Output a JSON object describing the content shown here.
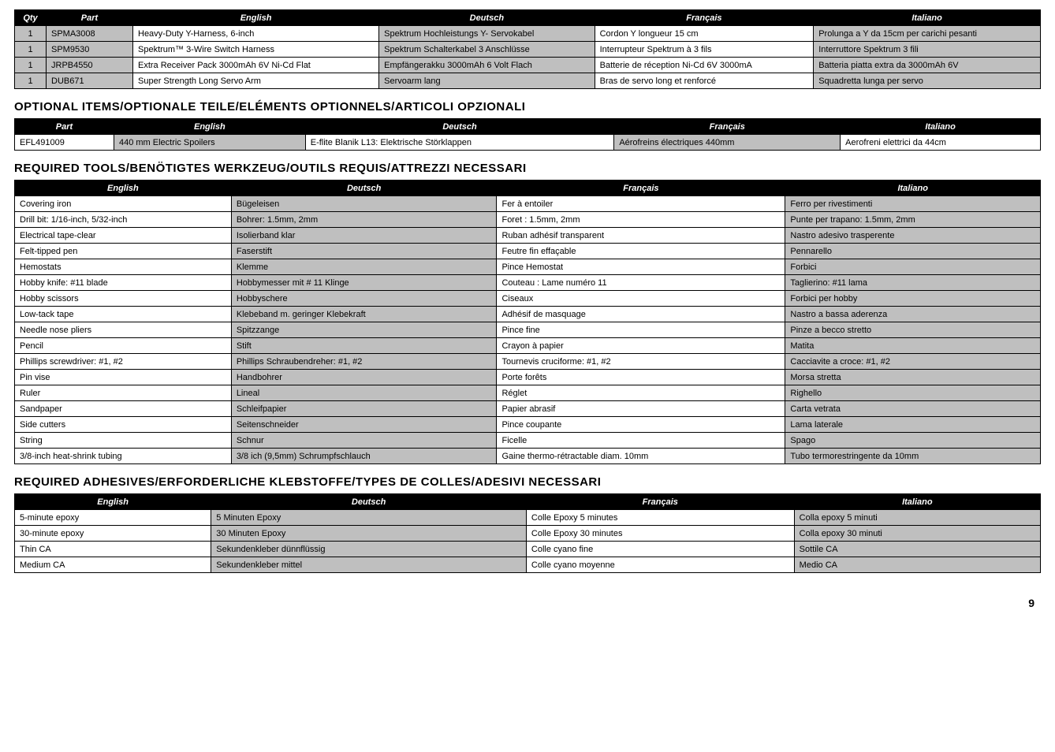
{
  "table1": {
    "headers": [
      "Qty",
      "Part",
      "English",
      "Deutsch",
      "Français",
      "Italiano"
    ],
    "rows": [
      [
        "1",
        "SPMA3008",
        "Heavy-Duty Y-Harness, 6-inch",
        "Spektrum Hochleistungs Y- Servokabel",
        "Cordon Y longueur 15 cm",
        "Prolunga a Y da 15cm per carichi pesanti"
      ],
      [
        "1",
        "SPM9530",
        "Spektrum™ 3-Wire Switch Harness",
        "Spektrum Schalterkabel 3 Anschlüsse",
        "Interrupteur Spektrum à 3 fils",
        "Interruttore Spektrum 3 fili"
      ],
      [
        "1",
        "JRPB4550",
        "Extra Receiver Pack 3000mAh 6V Ni-Cd Flat",
        "Empfängerakku 3000mAh 6 Volt Flach",
        "Batterie de réception Ni-Cd 6V 3000mA",
        "Batteria piatta extra da 3000mAh 6V"
      ],
      [
        "1",
        "DUB671",
        "Super Strength Long Servo Arm",
        "Servoarm lang",
        "Bras de servo long et renforcé",
        "Squadretta lunga per servo"
      ]
    ]
  },
  "heading2": "OPTIONAL ITEMS/OPTIONALE TEILE/ELÉMENTS OPTIONNELS/ARTICOLI OPZIONALI",
  "table2": {
    "headers": [
      "Part",
      "English",
      "Deutsch",
      "Français",
      "Italiano"
    ],
    "rows": [
      [
        "EFL491009",
        "440 mm Electric Spoilers",
        "E-flite Blanik L13: Elektrische Störklappen",
        "Aérofreins électriques 440mm",
        "Aerofreni elettrici da 44cm"
      ]
    ]
  },
  "heading3": "REQUIRED TOOLS/BENÖTIGTES WERKZEUG/OUTILS REQUIS/ATTREZZI NECESSARI",
  "table3": {
    "headers": [
      "English",
      "Deutsch",
      "Français",
      "Italiano"
    ],
    "rows": [
      [
        "Covering iron",
        "Bügeleisen",
        "Fer à entoiler",
        "Ferro per rivestimenti"
      ],
      [
        "Drill bit: 1/16-inch, 5/32-inch",
        "Bohrer: 1.5mm, 2mm",
        "Foret : 1.5mm, 2mm",
        "Punte per trapano: 1.5mm, 2mm"
      ],
      [
        "Electrical tape-clear",
        "Isolierband klar",
        "Ruban adhésif transparent",
        "Nastro adesivo trasperente"
      ],
      [
        "Felt-tipped pen",
        "Faserstift",
        "Feutre fin effaçable",
        "Pennarello"
      ],
      [
        "Hemostats",
        "Klemme",
        "Pince Hemostat",
        "Forbici"
      ],
      [
        "Hobby knife: #11 blade",
        "Hobbymesser mit # 11 Klinge",
        "Couteau : Lame numéro 11",
        "Taglierino: #11 lama"
      ],
      [
        "Hobby scissors",
        "Hobbyschere",
        "Ciseaux",
        "Forbici per hobby"
      ],
      [
        "Low-tack tape",
        "Klebeband m. geringer Klebekraft",
        "Adhésif de masquage",
        "Nastro a bassa aderenza"
      ],
      [
        "Needle nose pliers",
        "Spitzzange",
        "Pince fine",
        "Pinze a becco stretto"
      ],
      [
        "Pencil",
        "Stift",
        "Crayon à papier",
        "Matita"
      ],
      [
        "Phillips screwdriver: #1, #2",
        "Phillips Schraubendreher: #1, #2",
        "Tournevis cruciforme: #1, #2",
        "Cacciavite a croce: #1, #2"
      ],
      [
        "Pin vise",
        "Handbohrer",
        "Porte forêts",
        "Morsa stretta"
      ],
      [
        "Ruler",
        "Lineal",
        "Réglet",
        "Righello"
      ],
      [
        "Sandpaper",
        "Schleifpapier",
        "Papier abrasif",
        "Carta vetrata"
      ],
      [
        "Side cutters",
        "Seitenschneider",
        "Pince coupante",
        "Lama laterale"
      ],
      [
        "String",
        "Schnur",
        "Ficelle",
        "Spago"
      ],
      [
        "3/8-inch heat-shrink tubing",
        "3/8 ich (9,5mm) Schrumpfschlauch",
        "Gaine thermo-rétractable diam. 10mm",
        "Tubo termorestringente da 10mm"
      ]
    ]
  },
  "heading4": "REQUIRED ADHESIVES/ERFORDERLICHE KLEBSTOFFE/TYPES DE COLLES/ADESIVI NECESSARI",
  "table4": {
    "headers": [
      "English",
      "Deutsch",
      "Français",
      "Italiano"
    ],
    "rows": [
      [
        "5-minute epoxy",
        "5 Minuten Epoxy",
        "Colle Epoxy 5 minutes",
        "Colla epoxy 5 minuti"
      ],
      [
        "30-minute epoxy",
        "30 Minuten Epoxy",
        "Colle Epoxy 30 minutes",
        "Colla epoxy 30 minuti"
      ],
      [
        "Thin CA",
        "Sekundenkleber dünnflüssig",
        "Colle cyano fine",
        "Sottile CA"
      ],
      [
        "Medium CA",
        "Sekundenkleber mittel",
        "Colle cyano moyenne",
        "Medio CA"
      ]
    ]
  },
  "pageNumber": "9",
  "style": {
    "shadeColor": "#bfbfbf",
    "headerBg": "#000000",
    "headerFg": "#ffffff",
    "borderColor": "#000000",
    "shadedColumns_t1": [
      0,
      1,
      3,
      5
    ],
    "shadedColumns_t2": [
      1,
      3
    ],
    "shadedColumns_t3": [
      1,
      3
    ],
    "shadedColumns_t4": [
      1,
      3
    ]
  }
}
